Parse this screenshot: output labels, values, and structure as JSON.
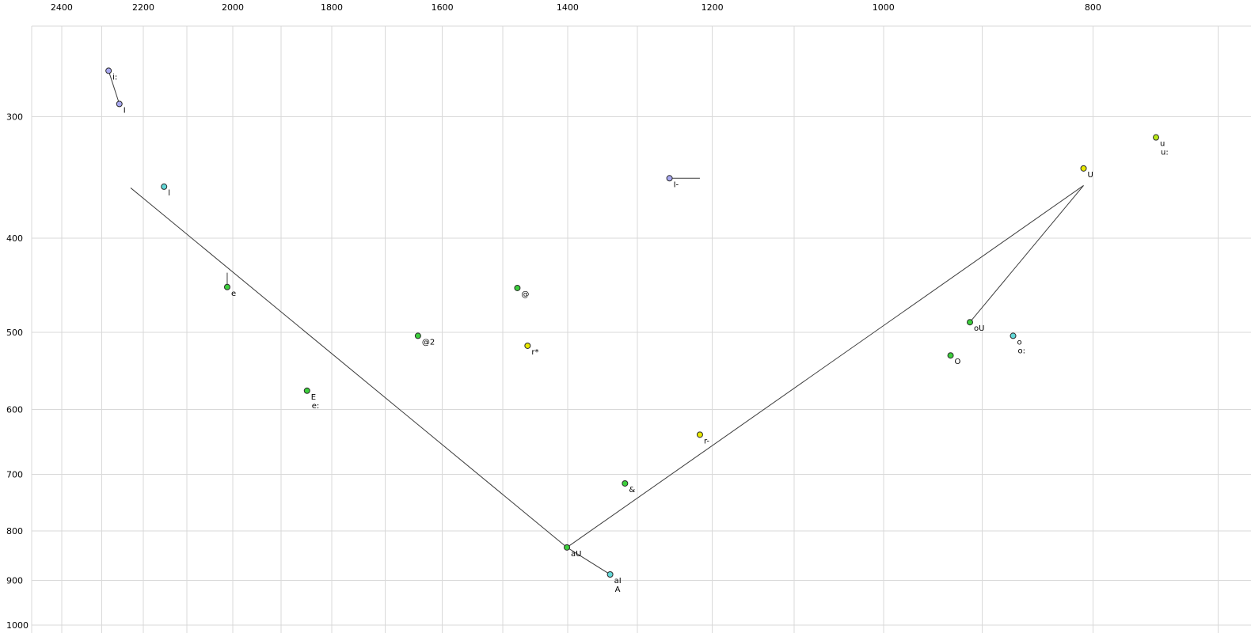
{
  "chart_data": {
    "type": "scatter",
    "title": "",
    "description": "Vowel formant chart: F2 (Hz) across top axis, F1 (Hz) down left axis, both log-scaled and reversed, colored phoneme points with connecting trajectory lines",
    "x_axis": {
      "position": "top",
      "scale": "log",
      "reversed": true,
      "tick_labels": [
        2400,
        2200,
        2000,
        1800,
        1600,
        1400,
        1200,
        1000,
        800
      ],
      "gridlines": [
        2400,
        2300,
        2200,
        2100,
        2000,
        1900,
        1800,
        1700,
        1600,
        1500,
        1400,
        1300,
        1200,
        1100,
        1000,
        900,
        800,
        700
      ],
      "range": [
        2563,
        676
      ]
    },
    "y_axis": {
      "position": "left",
      "scale": "log",
      "increases_downward": true,
      "tick_labels": [
        300,
        400,
        500,
        600,
        700,
        800,
        900,
        1000
      ],
      "gridlines": [
        300,
        400,
        500,
        600,
        700,
        800,
        900,
        1000
      ],
      "range": [
        242,
        1019
      ]
    },
    "colors": {
      "green": "#3ccf3c",
      "yellow": "#e8e800",
      "yellowgreen": "#b8e818",
      "cyan": "#62d8d8",
      "lavender": "#a8a8f0",
      "grid": "#d9d9d9",
      "line": "#3c3c3c",
      "text": "#000000",
      "background": "#ffffff"
    },
    "points": [
      {
        "label": "i:",
        "f2": 2283,
        "f1": 269,
        "color": "lavender"
      },
      {
        "label": "I",
        "f2": 2257,
        "f1": 291,
        "color": "lavender"
      },
      {
        "label": "l",
        "f2": 2152,
        "f1": 354,
        "color": "cyan"
      },
      {
        "label": "e",
        "f2": 2012,
        "f1": 449,
        "color": "green"
      },
      {
        "label": "E",
        "label2": "e:",
        "f2": 1848,
        "f1": 574,
        "color": "green"
      },
      {
        "label": "@2",
        "f2": 1642,
        "f1": 504,
        "color": "green"
      },
      {
        "label": "@",
        "f2": 1477,
        "f1": 450,
        "color": "green"
      },
      {
        "label": "r*",
        "f2": 1461,
        "f1": 516,
        "color": "yellow"
      },
      {
        "label": "aU",
        "f2": 1401,
        "f1": 832,
        "color": "green"
      },
      {
        "label": "aI",
        "label2": "A",
        "f2": 1338,
        "f1": 887,
        "color": "cyan"
      },
      {
        "label": "&",
        "f2": 1317,
        "f1": 715,
        "color": "green"
      },
      {
        "label": "I-",
        "f2": 1256,
        "f1": 347,
        "color": "lavender"
      },
      {
        "label": "r-",
        "f2": 1216,
        "f1": 637,
        "color": "yellow"
      },
      {
        "label": "O",
        "f2": 931,
        "f1": 528,
        "color": "green"
      },
      {
        "label": "oU",
        "f2": 912,
        "f1": 488,
        "color": "green"
      },
      {
        "label": "o",
        "label2": "o:",
        "f2": 871,
        "f1": 504,
        "color": "cyan"
      },
      {
        "label": "U",
        "f2": 808,
        "f1": 339,
        "color": "yellow"
      },
      {
        "label": "u",
        "label2": "u:",
        "f2": 748,
        "f1": 315,
        "color": "yellowgreen"
      }
    ],
    "segments": [
      {
        "name": "i-long-to-I",
        "from": [
          2283,
          269
        ],
        "to": [
          2257,
          291
        ]
      },
      {
        "name": "front-diagonal",
        "from": [
          2230,
          355
        ],
        "to": [
          1401,
          832
        ]
      },
      {
        "name": "back-diagonal",
        "from": [
          1401,
          832
        ],
        "to": [
          808,
          353
        ]
      },
      {
        "name": "U-to-oU",
        "from": [
          808,
          353
        ],
        "to": [
          912,
          488
        ]
      },
      {
        "name": "aU-to-aI",
        "from": [
          1401,
          832
        ],
        "to": [
          1338,
          887
        ]
      },
      {
        "name": "I-bar-tail",
        "from": [
          1256,
          347
        ],
        "to": [
          1216,
          347
        ]
      },
      {
        "name": "e-tick",
        "from": [
          2012,
          434
        ],
        "to": [
          2012,
          447
        ]
      }
    ]
  }
}
